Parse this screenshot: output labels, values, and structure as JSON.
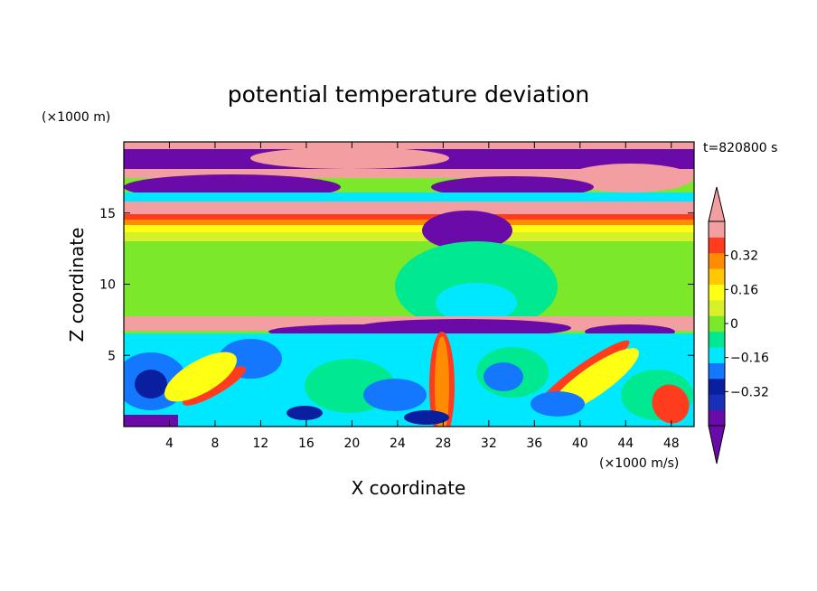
{
  "chart_data": {
    "type": "heatmap",
    "title": "potential temperature deviation",
    "xlabel": "X coordinate",
    "ylabel": "Z coordinate",
    "x_unit": "(×1000 m/s)",
    "y_unit": "(×1000 m)",
    "time_label": "t=820800 s",
    "xlim": [
      0,
      50
    ],
    "ylim": [
      0,
      20
    ],
    "x_ticks": [
      4,
      8,
      12,
      16,
      20,
      24,
      28,
      32,
      36,
      40,
      44,
      48
    ],
    "y_ticks": [
      5,
      10,
      15
    ],
    "x_tick_labels": [
      "4",
      "8",
      "12",
      "16",
      "20",
      "24",
      "28",
      "32",
      "36",
      "40",
      "44",
      "48"
    ],
    "y_tick_labels": [
      "5",
      "10",
      "15"
    ],
    "colorbar": {
      "levels": [
        -0.48,
        -0.4,
        -0.32,
        -0.24,
        -0.16,
        -0.08,
        0,
        0.08,
        0.16,
        0.24,
        0.32,
        0.4,
        0.48
      ],
      "labeled_levels": [
        0.32,
        0.16,
        0,
        -0.16,
        -0.32
      ],
      "labels": [
        "0.32",
        "0.16",
        "0",
        "−0.16",
        "−0.32"
      ],
      "colors_bottom_to_top": [
        "#6a0aa8",
        "#1a2fb8",
        "#0a1ea0",
        "#1478ff",
        "#00e8ff",
        "#00e890",
        "#7ce82a",
        "#d6f02a",
        "#ffff14",
        "#ffc800",
        "#ff8c00",
        "#ff3c1e",
        "#f39ea0"
      ],
      "extend": "both",
      "upper_extension_color": "#f39ea0",
      "lower_extension_color": "#6a0aa8"
    }
  }
}
